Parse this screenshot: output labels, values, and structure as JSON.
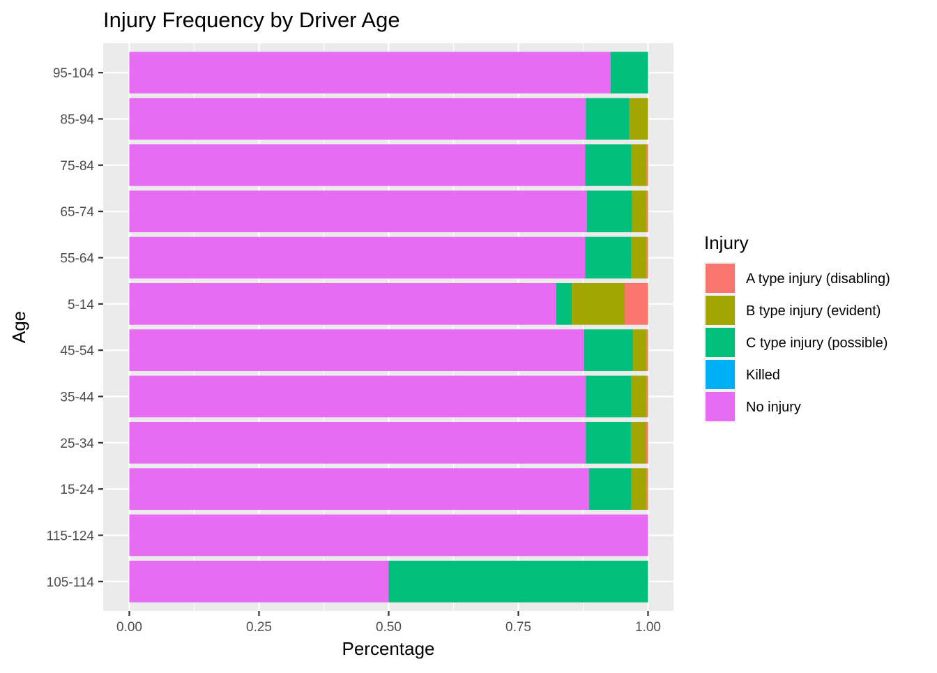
{
  "chart_data": {
    "type": "bar",
    "orientation": "horizontal",
    "stacked": "fill",
    "title": "Injury Frequency by Driver Age",
    "xlabel": "Percentage",
    "ylabel": "Age",
    "xlim": [
      0,
      1
    ],
    "x_ticks": [
      "0.00",
      "0.25",
      "0.50",
      "0.75",
      "1.00"
    ],
    "grid": true,
    "legend_position": "right",
    "legend_title": "Injury",
    "categories": [
      "95-104",
      "85-94",
      "75-84",
      "65-74",
      "55-64",
      "5-14",
      "45-54",
      "35-44",
      "25-34",
      "15-24",
      "115-124",
      "105-114"
    ],
    "series": [
      {
        "name": "A type injury (disabling)",
        "color": "#F8766D",
        "values": [
          0,
          0,
          0.003,
          0.003,
          0.003,
          0.045,
          0.003,
          0.003,
          0.004,
          0.003,
          0,
          0
        ]
      },
      {
        "name": "B type injury (evident)",
        "color": "#A3A500",
        "values": [
          0,
          0.036,
          0.029,
          0.028,
          0.029,
          0.102,
          0.026,
          0.029,
          0.029,
          0.029,
          0,
          0
        ]
      },
      {
        "name": "C type injury (possible)",
        "color": "#00BF7D",
        "values": [
          0.072,
          0.084,
          0.089,
          0.087,
          0.089,
          0.03,
          0.094,
          0.088,
          0.087,
          0.082,
          0,
          0.5
        ]
      },
      {
        "name": "Killed",
        "color": "#00B0F6",
        "values": [
          0,
          0,
          0,
          0,
          0,
          0,
          0,
          0,
          0,
          0,
          0,
          0
        ]
      },
      {
        "name": "No injury",
        "color": "#E76BF3",
        "values": [
          0.928,
          0.88,
          0.879,
          0.882,
          0.879,
          0.823,
          0.877,
          0.88,
          0.88,
          0.886,
          1,
          0.5
        ]
      }
    ]
  }
}
